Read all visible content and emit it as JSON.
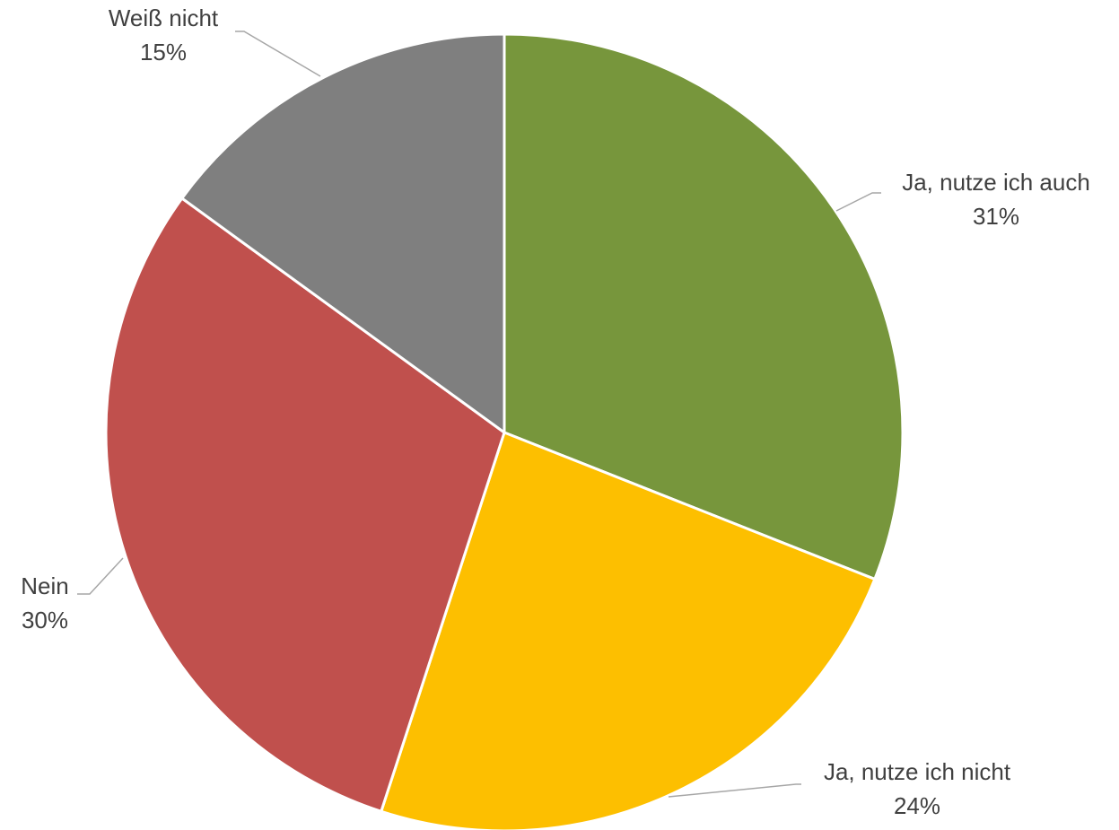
{
  "chart_data": {
    "type": "pie",
    "categories": [
      "Ja, nutze ich auch",
      "Ja, nutze ich nicht",
      "Nein",
      "Weiß nicht"
    ],
    "values": [
      31,
      24,
      30,
      15
    ],
    "value_labels": [
      "31%",
      "24%",
      "30%",
      "15%"
    ],
    "colors": [
      "#77963c",
      "#fdbf00",
      "#c0504d",
      "#7f7f7f"
    ]
  }
}
